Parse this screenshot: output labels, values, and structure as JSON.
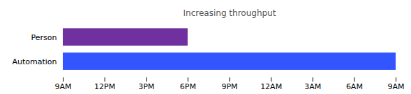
{
  "chart_data": {
    "type": "bar",
    "orientation": "horizontal",
    "title": "Increasing throughput",
    "categories": [
      "Person",
      "Automation"
    ],
    "values": [
      9,
      24
    ],
    "colors": [
      "#7030A0",
      "#3355FF"
    ],
    "xlim": [
      0,
      24
    ],
    "xticks": [
      {
        "value": 0,
        "label": "9AM"
      },
      {
        "value": 3,
        "label": "12PM"
      },
      {
        "value": 6,
        "label": "3PM"
      },
      {
        "value": 9,
        "label": "6PM"
      },
      {
        "value": 12,
        "label": "9PM"
      },
      {
        "value": 15,
        "label": "12AM"
      },
      {
        "value": 18,
        "label": "3AM"
      },
      {
        "value": 21,
        "label": "6AM"
      },
      {
        "value": 24,
        "label": "9AM"
      }
    ],
    "grid": false
  }
}
